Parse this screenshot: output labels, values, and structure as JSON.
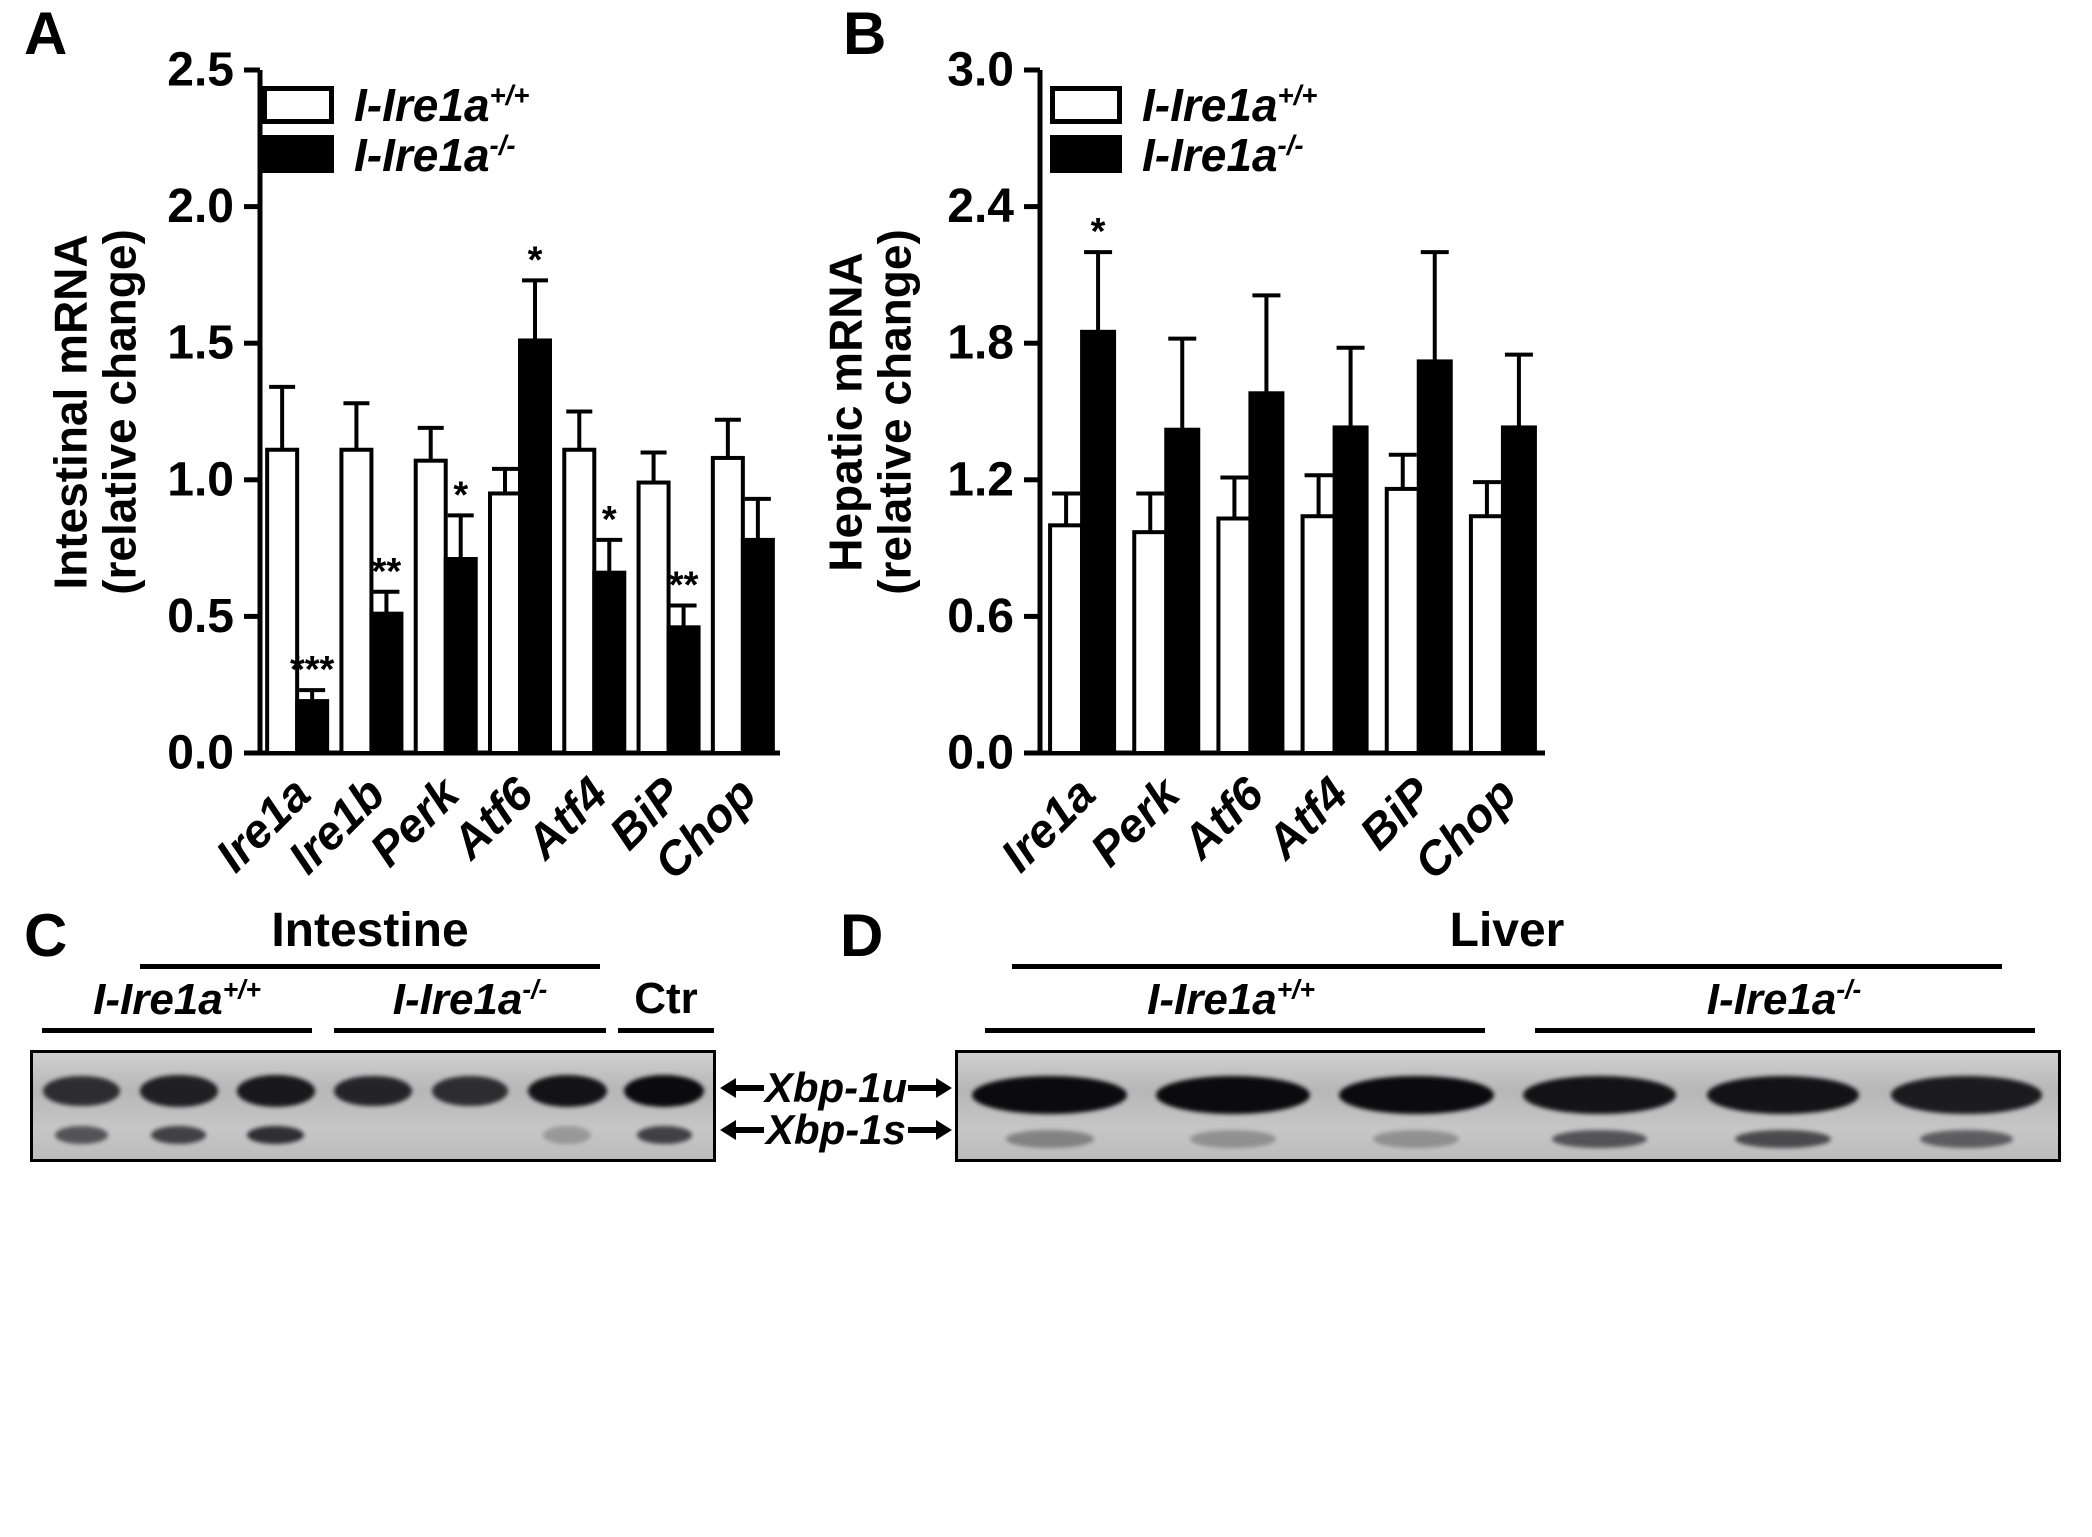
{
  "figure": {
    "background": "#ffffff",
    "ink_color": "#000000",
    "gel_background": "#bfbfbf"
  },
  "panels": {
    "A": {
      "label": "A"
    },
    "B": {
      "label": "B"
    },
    "C": {
      "label": "C"
    },
    "D": {
      "label": "D"
    }
  },
  "legend": {
    "wildtype": {
      "base": "I-Ire1a",
      "sup": "+/+"
    },
    "knockout": {
      "base": "I-Ire1a",
      "sup": "-/-"
    }
  },
  "chart_data": [
    {
      "id": "A",
      "type": "bar",
      "ylabel_line1": "Intestinal mRNA",
      "ylabel_line2": "(relative change)",
      "ylim": [
        0,
        2.5
      ],
      "yticks": [
        "0.0",
        "0.5",
        "1.0",
        "1.5",
        "2.0",
        "2.5"
      ],
      "grid": false,
      "legend_position": "top-left",
      "categories": [
        "Ire1a",
        "Ire1b",
        "Perk",
        "Atf6",
        "Atf4",
        "BiP",
        "Chop"
      ],
      "series": [
        {
          "key": "wildtype",
          "name": "I-Ire1a+/+",
          "fill": "#ffffff",
          "values": [
            1.11,
            1.11,
            1.07,
            0.95,
            1.11,
            0.99,
            1.08
          ],
          "errors": [
            0.23,
            0.17,
            0.12,
            0.09,
            0.14,
            0.11,
            0.14
          ],
          "significance": [
            "",
            "",
            "",
            "",
            "",
            "",
            ""
          ]
        },
        {
          "key": "knockout",
          "name": "I-Ire1a-/-",
          "fill": "#000000",
          "values": [
            0.19,
            0.51,
            0.71,
            1.51,
            0.66,
            0.46,
            0.78
          ],
          "errors": [
            0.04,
            0.08,
            0.16,
            0.22,
            0.12,
            0.08,
            0.15
          ],
          "significance": [
            "***",
            "**",
            "*",
            "*",
            "*",
            "**",
            ""
          ]
        }
      ]
    },
    {
      "id": "B",
      "type": "bar",
      "ylabel_line1": "Hepatic mRNA",
      "ylabel_line2": "(relative change)",
      "ylim": [
        0,
        3.0
      ],
      "yticks": [
        "0.0",
        "0.6",
        "1.2",
        "1.8",
        "2.4",
        "3.0"
      ],
      "grid": false,
      "legend_position": "top-left",
      "categories": [
        "Ire1a",
        "Perk",
        "Atf6",
        "Atf4",
        "BiP",
        "Chop"
      ],
      "series": [
        {
          "key": "wildtype",
          "name": "I-Ire1a+/+",
          "fill": "#ffffff",
          "values": [
            1.0,
            0.97,
            1.03,
            1.04,
            1.16,
            1.04
          ],
          "errors": [
            0.14,
            0.17,
            0.18,
            0.18,
            0.15,
            0.15
          ],
          "significance": [
            "",
            "",
            "",
            "",
            "",
            ""
          ]
        },
        {
          "key": "knockout",
          "name": "I-Ire1a-/-",
          "fill": "#000000",
          "values": [
            1.85,
            1.42,
            1.58,
            1.43,
            1.72,
            1.43
          ],
          "errors": [
            0.35,
            0.4,
            0.43,
            0.35,
            0.48,
            0.32
          ],
          "significance": [
            "*",
            "",
            "",
            "",
            "",
            ""
          ]
        }
      ]
    }
  ],
  "blots": [
    {
      "id": "C",
      "tissue": "Intestine",
      "groups": [
        {
          "base": "I-Ire1a",
          "sup": "+/+"
        },
        {
          "base": "I-Ire1a",
          "sup": "-/-"
        },
        {
          "base": "Ctr",
          "sup": ""
        }
      ],
      "lanes_per_group": [
        3,
        3,
        1
      ],
      "band_intensity_upper": [
        0.8,
        0.88,
        0.92,
        0.85,
        0.8,
        0.95,
        1.0
      ],
      "band_intensity_lower": [
        0.45,
        0.55,
        0.65,
        0,
        0,
        0.08,
        0.55
      ]
    },
    {
      "id": "D",
      "tissue": "Liver",
      "groups": [
        {
          "base": "I-Ire1a",
          "sup": "+/+"
        },
        {
          "base": "I-Ire1a",
          "sup": "-/-"
        }
      ],
      "lanes_per_group": [
        3,
        3
      ],
      "band_intensity_upper": [
        1.0,
        1.0,
        1.0,
        0.95,
        0.95,
        0.9
      ],
      "band_intensity_lower": [
        0.2,
        0.12,
        0.12,
        0.45,
        0.5,
        0.4
      ]
    }
  ],
  "band_labels": [
    "Xbp-1u",
    "Xbp-1s"
  ]
}
